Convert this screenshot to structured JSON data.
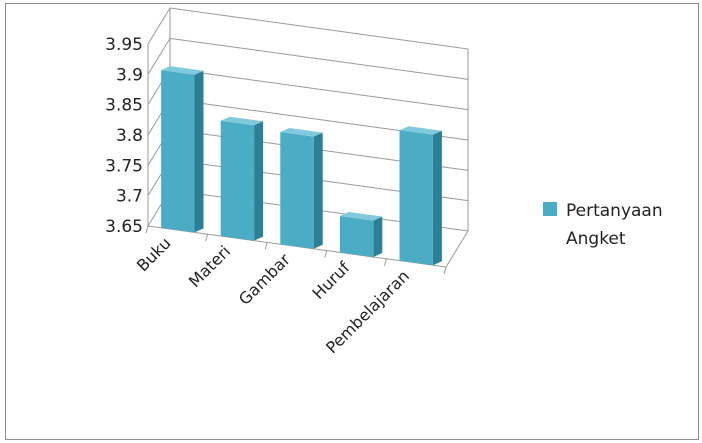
{
  "chart_data": {
    "type": "bar",
    "title": "",
    "xlabel": "",
    "ylabel": "",
    "categories": [
      "Buku",
      "Materi",
      "Gambar",
      "Huruf",
      "Pembelajaran"
    ],
    "series": [
      {
        "name": "Pertanyaan Angket",
        "values": [
          3.91,
          3.84,
          3.835,
          3.71,
          3.865
        ]
      }
    ],
    "ylim": [
      3.65,
      3.95
    ],
    "yticks": [
      "3.65",
      "3.7",
      "3.75",
      "3.8",
      "3.85",
      "3.9",
      "3.95"
    ],
    "grid": true,
    "legend": "right",
    "colors": {
      "bar_front": "#4bacc6",
      "bar_side": "#2c7f95",
      "bar_top": "#7fcadd",
      "grid": "#9a9a9a",
      "frame": "#8e8e8e"
    }
  },
  "legend": {
    "line1": "Pertanyaan",
    "line2": "Angket"
  }
}
